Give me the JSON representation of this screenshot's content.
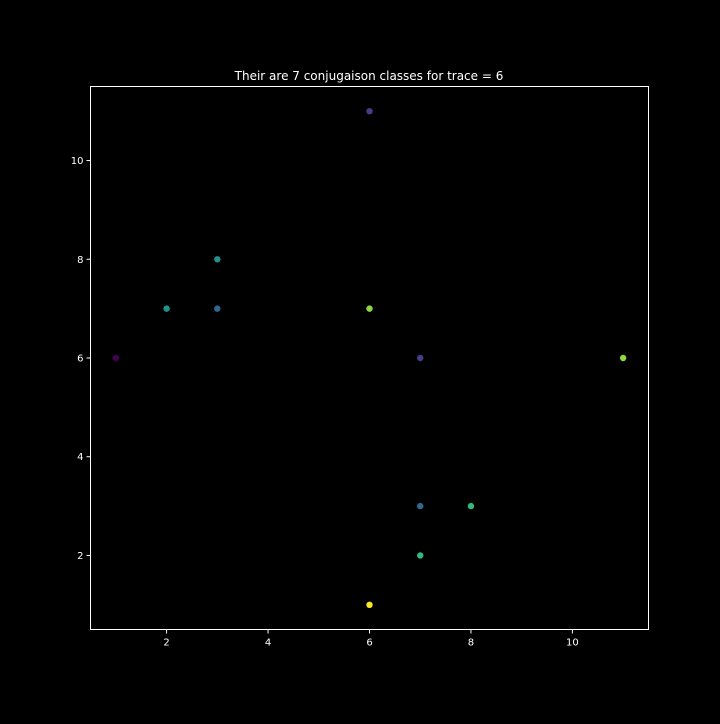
{
  "chart_data": {
    "type": "scatter",
    "title": "Their are 7 conjugaison classes for trace = 6",
    "xlabel": "",
    "ylabel": "",
    "xlim": [
      0.5,
      11.5
    ],
    "ylim": [
      0.5,
      11.5
    ],
    "xticks": [
      2,
      4,
      6,
      8,
      10
    ],
    "yticks": [
      2,
      4,
      6,
      8,
      10
    ],
    "grid": false,
    "background": "#000000",
    "foreground": "#ffffff",
    "points": [
      {
        "x": 6,
        "y": 11,
        "color": "#433e85"
      },
      {
        "x": 3,
        "y": 8,
        "color": "#21918c"
      },
      {
        "x": 2,
        "y": 7,
        "color": "#21918c"
      },
      {
        "x": 3,
        "y": 7,
        "color": "#31688e"
      },
      {
        "x": 6,
        "y": 7,
        "color": "#90d743"
      },
      {
        "x": 1,
        "y": 6,
        "color": "#440154"
      },
      {
        "x": 7,
        "y": 6,
        "color": "#433e85"
      },
      {
        "x": 11,
        "y": 6,
        "color": "#90d743"
      },
      {
        "x": 7,
        "y": 3,
        "color": "#31688e"
      },
      {
        "x": 8,
        "y": 3,
        "color": "#35b779"
      },
      {
        "x": 7,
        "y": 2,
        "color": "#35b779"
      },
      {
        "x": 6,
        "y": 1,
        "color": "#fde725"
      }
    ]
  }
}
